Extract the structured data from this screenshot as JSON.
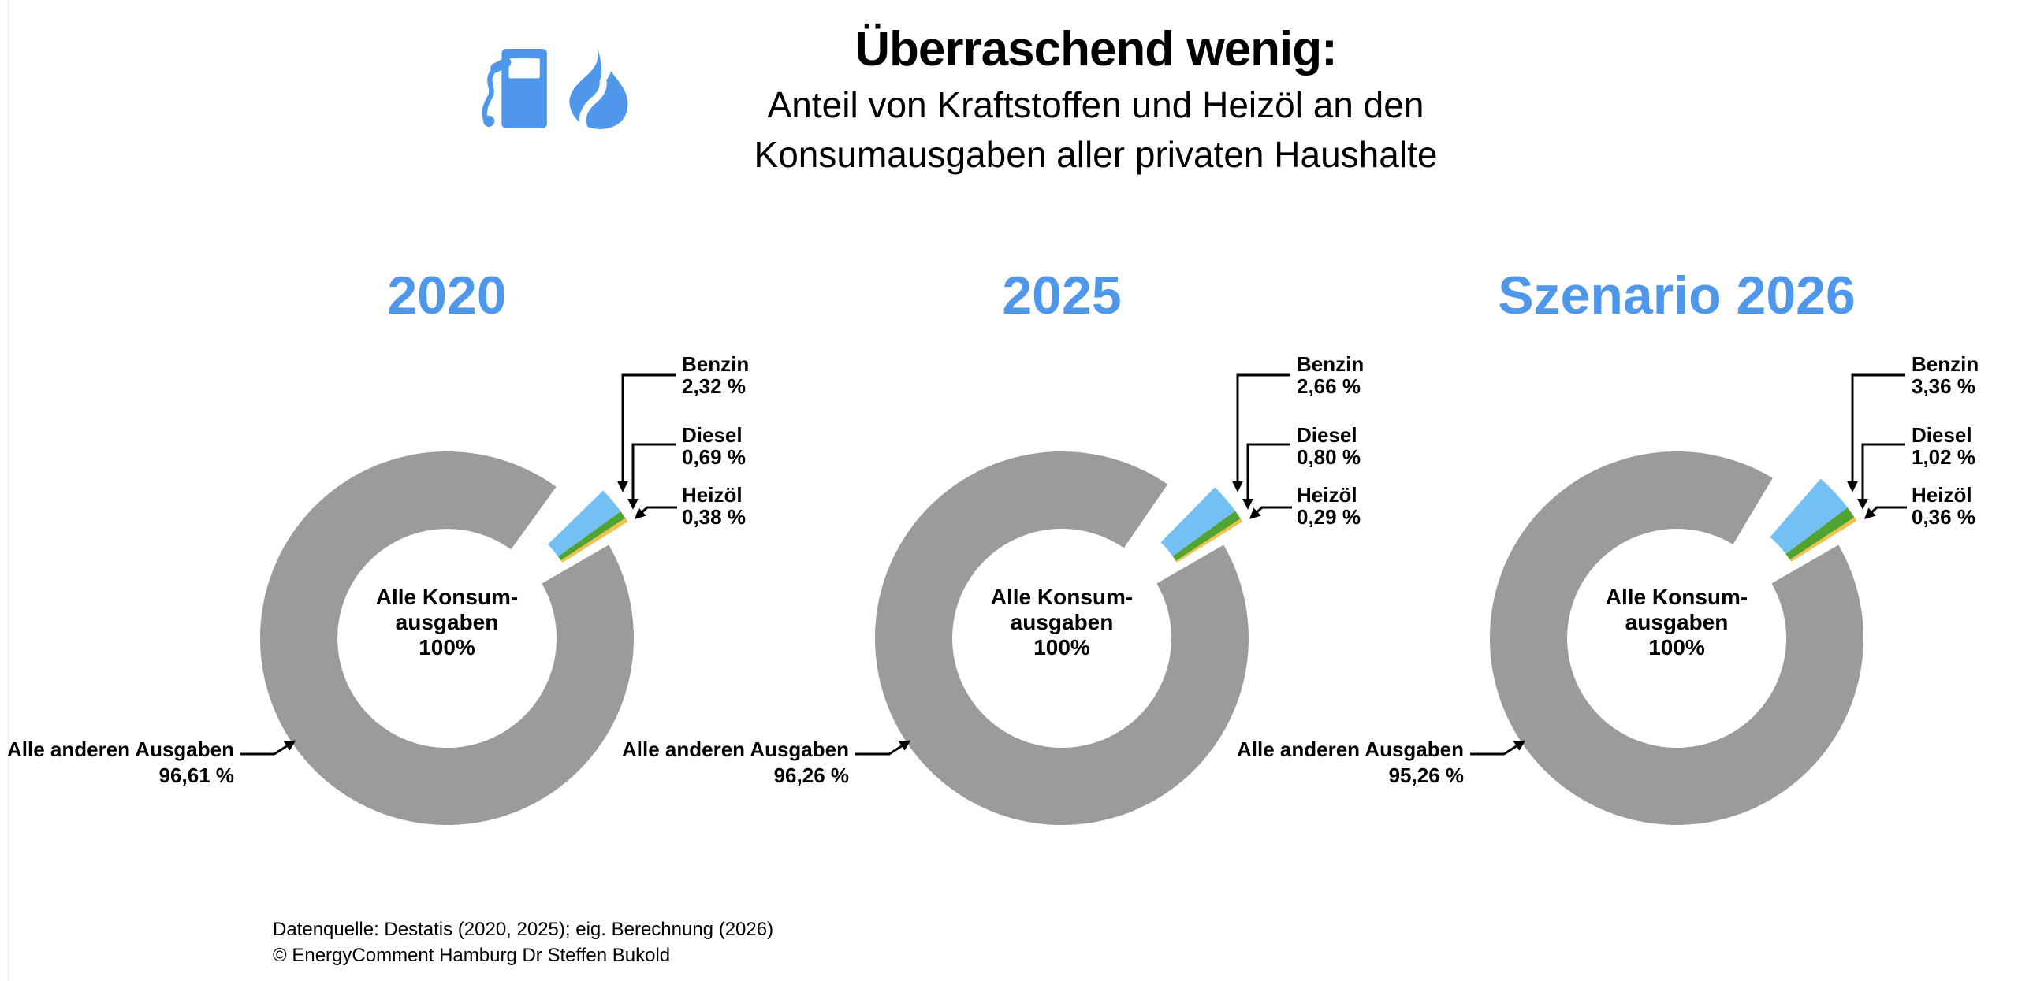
{
  "header": {
    "title": "Überraschend wenig:",
    "subtitle_line1": "Anteil von Kraftstoffen und Heizöl an den",
    "subtitle_line2": "Konsumausgaben aller privaten Haushalte",
    "icons": [
      "fuel-pump",
      "flame"
    ]
  },
  "footer": {
    "source_line1": "Datenquelle: Destatis (2020, 2025); eig. Berechnung (2026)",
    "source_line2": "© EnergyComment Hamburg Dr Steffen Bukold"
  },
  "colors": {
    "accent_blue": "#4e97ea",
    "benzin": "#72c0f4",
    "diesel": "#50a42f",
    "heizoel": "#f3c14b",
    "other_gray": "#9b9b9b",
    "text": "#000000",
    "background": "#ffffff"
  },
  "chart_data": [
    {
      "type": "pie",
      "variant": "donut-exploded",
      "title": "2020",
      "center_label": [
        "Alle Konsum-",
        "ausgaben",
        "100%"
      ],
      "slices": [
        {
          "id": "benzin",
          "name": "Benzin",
          "value": 2.32,
          "label": "2,32 %",
          "color": "#72c0f4"
        },
        {
          "id": "diesel",
          "name": "Diesel",
          "value": 0.69,
          "label": "0,69 %",
          "color": "#50a42f"
        },
        {
          "id": "heizoel",
          "name": "Heizöl",
          "value": 0.38,
          "label": "0,38 %",
          "color": "#f3c14b"
        }
      ],
      "other": {
        "id": "other",
        "name": "Alle anderen Ausgaben",
        "value": 96.61,
        "label": "96,61 %",
        "color": "#9b9b9b"
      }
    },
    {
      "type": "pie",
      "variant": "donut-exploded",
      "title": "2025",
      "center_label": [
        "Alle Konsum-",
        "ausgaben",
        "100%"
      ],
      "slices": [
        {
          "id": "benzin",
          "name": "Benzin",
          "value": 2.66,
          "label": "2,66 %",
          "color": "#72c0f4"
        },
        {
          "id": "diesel",
          "name": "Diesel",
          "value": 0.8,
          "label": "0,80 %",
          "color": "#50a42f"
        },
        {
          "id": "heizoel",
          "name": "Heizöl",
          "value": 0.29,
          "label": "0,29 %",
          "color": "#f3c14b"
        }
      ],
      "other": {
        "id": "other",
        "name": "Alle anderen Ausgaben",
        "value": 96.26,
        "label": "96,26 %",
        "color": "#9b9b9b"
      }
    },
    {
      "type": "pie",
      "variant": "donut-exploded",
      "title": "Szenario 2026",
      "center_label": [
        "Alle Konsum-",
        "ausgaben",
        "100%"
      ],
      "slices": [
        {
          "id": "benzin",
          "name": "Benzin",
          "value": 3.36,
          "label": "3,36 %",
          "color": "#72c0f4"
        },
        {
          "id": "diesel",
          "name": "Diesel",
          "value": 1.02,
          "label": "1,02 %",
          "color": "#50a42f"
        },
        {
          "id": "heizoel",
          "name": "Heizöl",
          "value": 0.36,
          "label": "0,36 %",
          "color": "#f3c14b"
        }
      ],
      "other": {
        "id": "other",
        "name": "Alle anderen Ausgaben",
        "value": 95.26,
        "label": "95,26 %",
        "color": "#9b9b9b"
      }
    }
  ],
  "layout_hints": {
    "legend": "callout-labels-right",
    "donut_hole": true,
    "exploded_group_position": "upper-right",
    "grid": false
  }
}
